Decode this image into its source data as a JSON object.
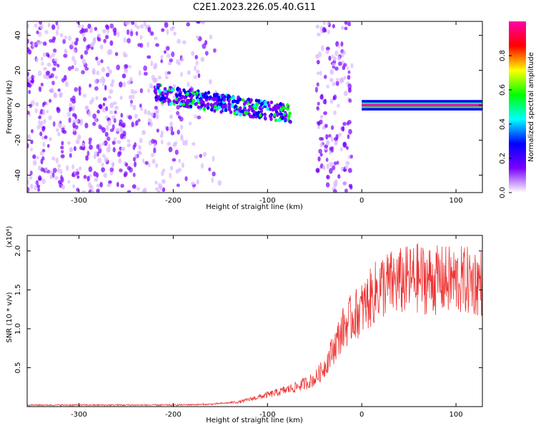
{
  "title": "C2E1.2023.226.05.40.G11",
  "chart_data": [
    {
      "type": "heatmap",
      "xlabel": "Height of straight line (km)",
      "ylabel": "Frequency (Hz)",
      "xlim": [
        -355,
        128
      ],
      "ylim": [
        -50,
        48
      ],
      "xticks": [
        -300,
        -200,
        -100,
        0,
        100
      ],
      "yticks": [
        40,
        20,
        0,
        -20,
        -40
      ],
      "colorbar": {
        "label": "Normalized spectral amplitude",
        "range": [
          0.0,
          1.0
        ],
        "ticks": [
          "0.0",
          "0.2",
          "0.4",
          "0.6",
          "0.8"
        ],
        "colormap": [
          "#ffffff",
          "#7b00ff",
          "#0000ff",
          "#00ffff",
          "#00ff00",
          "#ffff00",
          "#ff0000",
          "#ff00aa"
        ]
      },
      "features": [
        {
          "region": "noise",
          "x": [
            -355,
            -150
          ],
          "freq_spread_hz": [
            -50,
            48
          ],
          "amplitude": 0.1
        },
        {
          "region": "signal_trace",
          "x": [
            -220,
            -75
          ],
          "freq_start_hz": 7,
          "freq_end_hz": -5,
          "amplitude": 0.35
        },
        {
          "region": "noise",
          "x": [
            -48,
            -10
          ],
          "freq_spread_hz": [
            -50,
            48
          ],
          "amplitude": 0.1
        },
        {
          "region": "strong_line",
          "x": [
            0,
            128
          ],
          "freq_hz": 0,
          "amplitude": 0.95
        }
      ]
    },
    {
      "type": "line",
      "xlabel": "Height of straight line (km)",
      "ylabel": "SNR (10 * v/v)",
      "y_multiplier": "(x10⁴)",
      "xlim": [
        -355,
        128
      ],
      "ylim": [
        0,
        2.2
      ],
      "xticks": [
        -300,
        -200,
        -100,
        0,
        100
      ],
      "yticks": [
        "0.5",
        "1.0",
        "1.5",
        "2.0"
      ],
      "color": "#ee3333",
      "series": [
        {
          "x": [
            -355,
            -300,
            -250,
            -200,
            -160,
            -130,
            -110,
            -90,
            -70,
            -50,
            -40,
            -30,
            -20,
            -10,
            0,
            10,
            20,
            40,
            60,
            80,
            100,
            128
          ],
          "y": [
            0.02,
            0.02,
            0.02,
            0.02,
            0.03,
            0.06,
            0.12,
            0.18,
            0.25,
            0.35,
            0.5,
            0.75,
            1.0,
            1.15,
            1.25,
            1.4,
            1.55,
            1.6,
            1.65,
            1.62,
            1.62,
            1.6
          ]
        }
      ]
    }
  ]
}
